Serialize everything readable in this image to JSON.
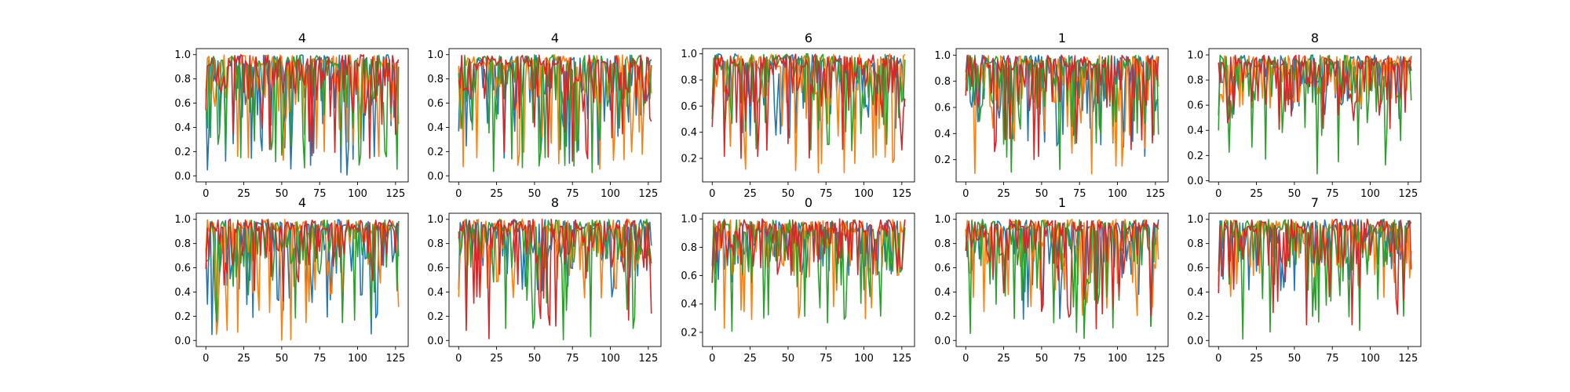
{
  "figure": {
    "background": "#ffffff",
    "grid_rows": 2,
    "grid_cols": 5,
    "series_colors": [
      "#1f77b4",
      "#ff7f0e",
      "#2ca02c",
      "#d62728"
    ]
  },
  "chart_data": [
    {
      "type": "line",
      "title": "4",
      "xlim": [
        -6.35,
        133.35
      ],
      "ylim": [
        -0.05,
        1.05
      ],
      "xticks": [
        0,
        25,
        50,
        75,
        100,
        125
      ],
      "yticks": [
        0.0,
        0.2,
        0.4,
        0.6,
        0.8,
        1.0
      ],
      "ytick_labels": [
        "0.0",
        "0.2",
        "0.4",
        "0.6",
        "0.8",
        "1.0"
      ],
      "n_points": 128,
      "series_count": 4,
      "grid": false,
      "legend": "none",
      "series_min": [
        0.0,
        0.0,
        0.03,
        0.06
      ]
    },
    {
      "type": "line",
      "title": "4",
      "xlim": [
        -6.35,
        133.35
      ],
      "ylim": [
        -0.05,
        1.05
      ],
      "xticks": [
        0,
        25,
        50,
        75,
        100,
        125
      ],
      "yticks": [
        0.0,
        0.2,
        0.4,
        0.6,
        0.8,
        1.0
      ],
      "ytick_labels": [
        "0.0",
        "0.2",
        "0.4",
        "0.6",
        "0.8",
        "1.0"
      ],
      "n_points": 128,
      "series_count": 4,
      "grid": false,
      "legend": "none",
      "series_min": [
        0.05,
        0.05,
        0.02,
        0.12
      ]
    },
    {
      "type": "line",
      "title": "6",
      "xlim": [
        -6.35,
        133.35
      ],
      "ylim": [
        0.02,
        1.04
      ],
      "xticks": [
        0,
        25,
        50,
        75,
        100,
        125
      ],
      "yticks": [
        0.2,
        0.4,
        0.6,
        0.8,
        1.0
      ],
      "ytick_labels": [
        "0.2",
        "0.4",
        "0.6",
        "0.8",
        "1.0"
      ],
      "n_points": 128,
      "series_count": 4,
      "grid": false,
      "legend": "none",
      "series_min": [
        0.35,
        0.07,
        0.25,
        0.18
      ]
    },
    {
      "type": "line",
      "title": "1",
      "xlim": [
        -6.35,
        133.35
      ],
      "ylim": [
        0.03,
        1.05
      ],
      "xticks": [
        0,
        25,
        50,
        75,
        100,
        125
      ],
      "yticks": [
        0.2,
        0.4,
        0.6,
        0.8,
        1.0
      ],
      "ytick_labels": [
        "0.2",
        "0.4",
        "0.6",
        "0.8",
        "1.0"
      ],
      "n_points": 128,
      "series_count": 4,
      "grid": false,
      "legend": "none",
      "series_min": [
        0.2,
        0.08,
        0.1,
        0.2
      ]
    },
    {
      "type": "line",
      "title": "8",
      "xlim": [
        -6.35,
        133.35
      ],
      "ylim": [
        -0.01,
        1.05
      ],
      "xticks": [
        0,
        25,
        50,
        75,
        100,
        125
      ],
      "yticks": [
        0.0,
        0.2,
        0.4,
        0.6,
        0.8,
        1.0
      ],
      "ytick_labels": [
        "0.0",
        "0.2",
        "0.4",
        "0.6",
        "0.8",
        "1.0"
      ],
      "n_points": 128,
      "series_count": 4,
      "grid": false,
      "legend": "none",
      "series_min": [
        0.45,
        0.55,
        0.05,
        0.4
      ]
    },
    {
      "type": "line",
      "title": "4",
      "xlim": [
        -6.35,
        133.35
      ],
      "ylim": [
        -0.05,
        1.05
      ],
      "xticks": [
        0,
        25,
        50,
        75,
        100,
        125
      ],
      "yticks": [
        0.0,
        0.2,
        0.4,
        0.6,
        0.8,
        1.0
      ],
      "ytick_labels": [
        "0.0",
        "0.2",
        "0.4",
        "0.6",
        "0.8",
        "1.0"
      ],
      "n_points": 128,
      "series_count": 4,
      "grid": false,
      "legend": "none",
      "series_min": [
        0.02,
        0.0,
        0.12,
        0.3
      ]
    },
    {
      "type": "line",
      "title": "8",
      "xlim": [
        -6.35,
        133.35
      ],
      "ylim": [
        -0.05,
        1.05
      ],
      "xticks": [
        0,
        25,
        50,
        75,
        100,
        125
      ],
      "yticks": [
        0.0,
        0.2,
        0.4,
        0.6,
        0.8,
        1.0
      ],
      "ytick_labels": [
        "0.0",
        "0.2",
        "0.4",
        "0.6",
        "0.8",
        "1.0"
      ],
      "n_points": 128,
      "series_count": 4,
      "grid": false,
      "legend": "none",
      "series_min": [
        0.35,
        0.3,
        0.0,
        0.0
      ]
    },
    {
      "type": "line",
      "title": "0",
      "xlim": [
        -6.35,
        133.35
      ],
      "ylim": [
        0.1,
        1.04
      ],
      "xticks": [
        0,
        25,
        50,
        75,
        100,
        125
      ],
      "yticks": [
        0.2,
        0.4,
        0.6,
        0.8,
        1.0
      ],
      "ytick_labels": [
        "0.2",
        "0.4",
        "0.6",
        "0.8",
        "1.0"
      ],
      "n_points": 128,
      "series_count": 4,
      "grid": false,
      "legend": "none",
      "series_min": [
        0.55,
        0.15,
        0.15,
        0.55
      ]
    },
    {
      "type": "line",
      "title": "1",
      "xlim": [
        -6.35,
        133.35
      ],
      "ylim": [
        -0.05,
        1.05
      ],
      "xticks": [
        0,
        25,
        50,
        75,
        100,
        125
      ],
      "yticks": [
        0.0,
        0.2,
        0.4,
        0.6,
        0.8,
        1.0
      ],
      "ytick_labels": [
        "0.0",
        "0.2",
        "0.4",
        "0.6",
        "0.8",
        "1.0"
      ],
      "n_points": 128,
      "series_count": 4,
      "grid": false,
      "legend": "none",
      "series_min": [
        0.08,
        0.2,
        0.0,
        0.05
      ]
    },
    {
      "type": "line",
      "title": "7",
      "xlim": [
        -6.35,
        133.35
      ],
      "ylim": [
        -0.05,
        1.05
      ],
      "xticks": [
        0,
        25,
        50,
        75,
        100,
        125
      ],
      "yticks": [
        0.0,
        0.2,
        0.4,
        0.6,
        0.8,
        1.0
      ],
      "ytick_labels": [
        "0.0",
        "0.2",
        "0.4",
        "0.6",
        "0.8",
        "1.0"
      ],
      "n_points": 128,
      "series_count": 4,
      "grid": false,
      "legend": "none",
      "series_min": [
        0.4,
        0.35,
        0.0,
        0.12
      ]
    }
  ]
}
